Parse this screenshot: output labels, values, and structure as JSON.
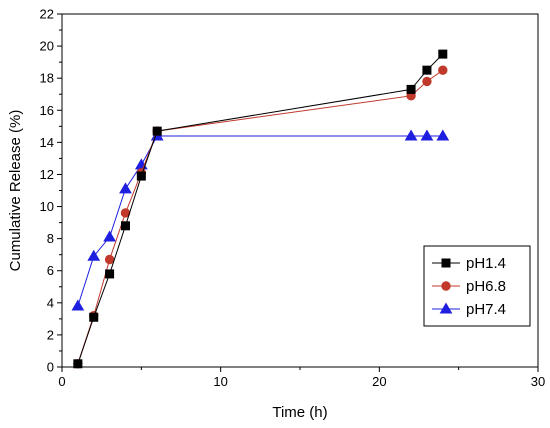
{
  "chart_data": {
    "type": "line",
    "title": "",
    "xlabel": "Time (h)",
    "ylabel": "Cumulative Release (%)",
    "xlim": [
      0,
      30
    ],
    "ylim": [
      0,
      22
    ],
    "xticks": [
      0,
      10,
      20,
      30
    ],
    "yticks": [
      0,
      2,
      4,
      6,
      8,
      10,
      12,
      14,
      16,
      18,
      20,
      22
    ],
    "grid": false,
    "legend_position": "bottom-right",
    "series": [
      {
        "name": "pH1.4",
        "color": "#000000",
        "marker": "square",
        "x": [
          1,
          2,
          3,
          4,
          5,
          6,
          22,
          23,
          24
        ],
        "y": [
          0.2,
          3.1,
          5.8,
          8.8,
          11.9,
          14.7,
          17.3,
          18.5,
          19.5
        ]
      },
      {
        "name": "pH6.8",
        "color": "#c0392b",
        "marker": "circle",
        "x": [
          1,
          2,
          3,
          4,
          5,
          6,
          22,
          23,
          24
        ],
        "y": [
          0.2,
          3.2,
          6.7,
          9.6,
          12.1,
          14.7,
          16.9,
          17.8,
          18.5
        ]
      },
      {
        "name": "pH7.4",
        "color": "#1f1fe0",
        "marker": "triangle",
        "x": [
          1,
          2,
          3,
          4,
          5,
          6,
          22,
          23,
          24
        ],
        "y": [
          3.8,
          6.9,
          8.1,
          11.1,
          12.6,
          14.4,
          14.4,
          14.4,
          14.4
        ]
      }
    ]
  }
}
